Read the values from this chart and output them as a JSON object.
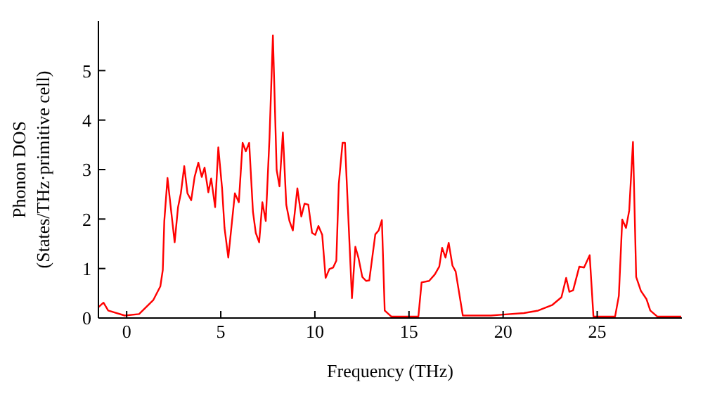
{
  "chart_data": {
    "type": "line",
    "xlabel": "Frequency (THz)",
    "ylabel": "Phonon DOS\n(States/THz·primitive cell)",
    "xlim": [
      -1.5,
      29.5
    ],
    "xticks": [
      0,
      5,
      10,
      15,
      20,
      25
    ],
    "ylim": [
      0,
      6
    ],
    "yticks": [
      0,
      1,
      2,
      3,
      4,
      5
    ],
    "grid": false,
    "legend": false,
    "marker": "none",
    "line_style": "solid",
    "series": [
      {
        "color": "#ff0000",
        "x": [
          -1.5,
          -1.23,
          -0.98,
          -0.1,
          0.66,
          1.41,
          1.79,
          1.92,
          2.0,
          2.17,
          2.55,
          2.73,
          2.88,
          3.06,
          3.23,
          3.43,
          3.61,
          3.81,
          3.99,
          4.14,
          4.34,
          4.49,
          4.7,
          4.87,
          5.07,
          5.2,
          5.4,
          5.75,
          5.96,
          6.16,
          6.33,
          6.51,
          6.71,
          6.86,
          7.04,
          7.21,
          7.39,
          7.59,
          7.77,
          7.97,
          8.12,
          8.3,
          8.48,
          8.65,
          8.83,
          9.07,
          9.28,
          9.45,
          9.65,
          9.85,
          10.02,
          10.19,
          10.39,
          10.57,
          10.77,
          10.97,
          11.14,
          11.27,
          11.47,
          11.6,
          11.97,
          12.15,
          12.32,
          12.52,
          12.72,
          12.89,
          13.21,
          13.39,
          13.56,
          13.71,
          14.06,
          15.5,
          15.67,
          16.07,
          16.37,
          16.61,
          16.76,
          16.94,
          17.11,
          17.31,
          17.48,
          17.86,
          19.35,
          20.0,
          21.1,
          21.86,
          22.6,
          23.1,
          23.35,
          23.52,
          23.72,
          24.05,
          24.3,
          24.6,
          24.8,
          25.95,
          26.15,
          26.33,
          26.53,
          26.7,
          26.9,
          27.07,
          27.32,
          27.62,
          27.82,
          28.19,
          29.46
        ],
        "values": [
          0.22,
          0.31,
          0.15,
          0.05,
          0.08,
          0.36,
          0.64,
          0.97,
          1.96,
          2.83,
          1.53,
          2.24,
          2.52,
          3.07,
          2.52,
          2.38,
          2.85,
          3.14,
          2.85,
          3.04,
          2.54,
          2.82,
          2.24,
          3.45,
          2.62,
          1.82,
          1.22,
          2.52,
          2.34,
          3.54,
          3.37,
          3.54,
          2.15,
          1.72,
          1.53,
          2.34,
          1.96,
          3.65,
          5.71,
          2.99,
          2.66,
          3.75,
          2.29,
          1.96,
          1.77,
          2.62,
          2.05,
          2.31,
          2.29,
          1.72,
          1.68,
          1.86,
          1.68,
          0.81,
          0.99,
          1.02,
          1.16,
          2.71,
          3.54,
          3.54,
          0.4,
          1.44,
          1.21,
          0.83,
          0.75,
          0.76,
          1.69,
          1.77,
          1.98,
          0.15,
          0.03,
          0.03,
          0.72,
          0.75,
          0.88,
          1.04,
          1.42,
          1.22,
          1.52,
          1.06,
          0.94,
          0.05,
          0.05,
          0.07,
          0.1,
          0.15,
          0.26,
          0.42,
          0.81,
          0.53,
          0.56,
          1.04,
          1.02,
          1.27,
          0.03,
          0.03,
          0.45,
          1.99,
          1.82,
          2.17,
          3.56,
          0.83,
          0.55,
          0.38,
          0.15,
          0.03,
          0.03
        ]
      }
    ]
  }
}
